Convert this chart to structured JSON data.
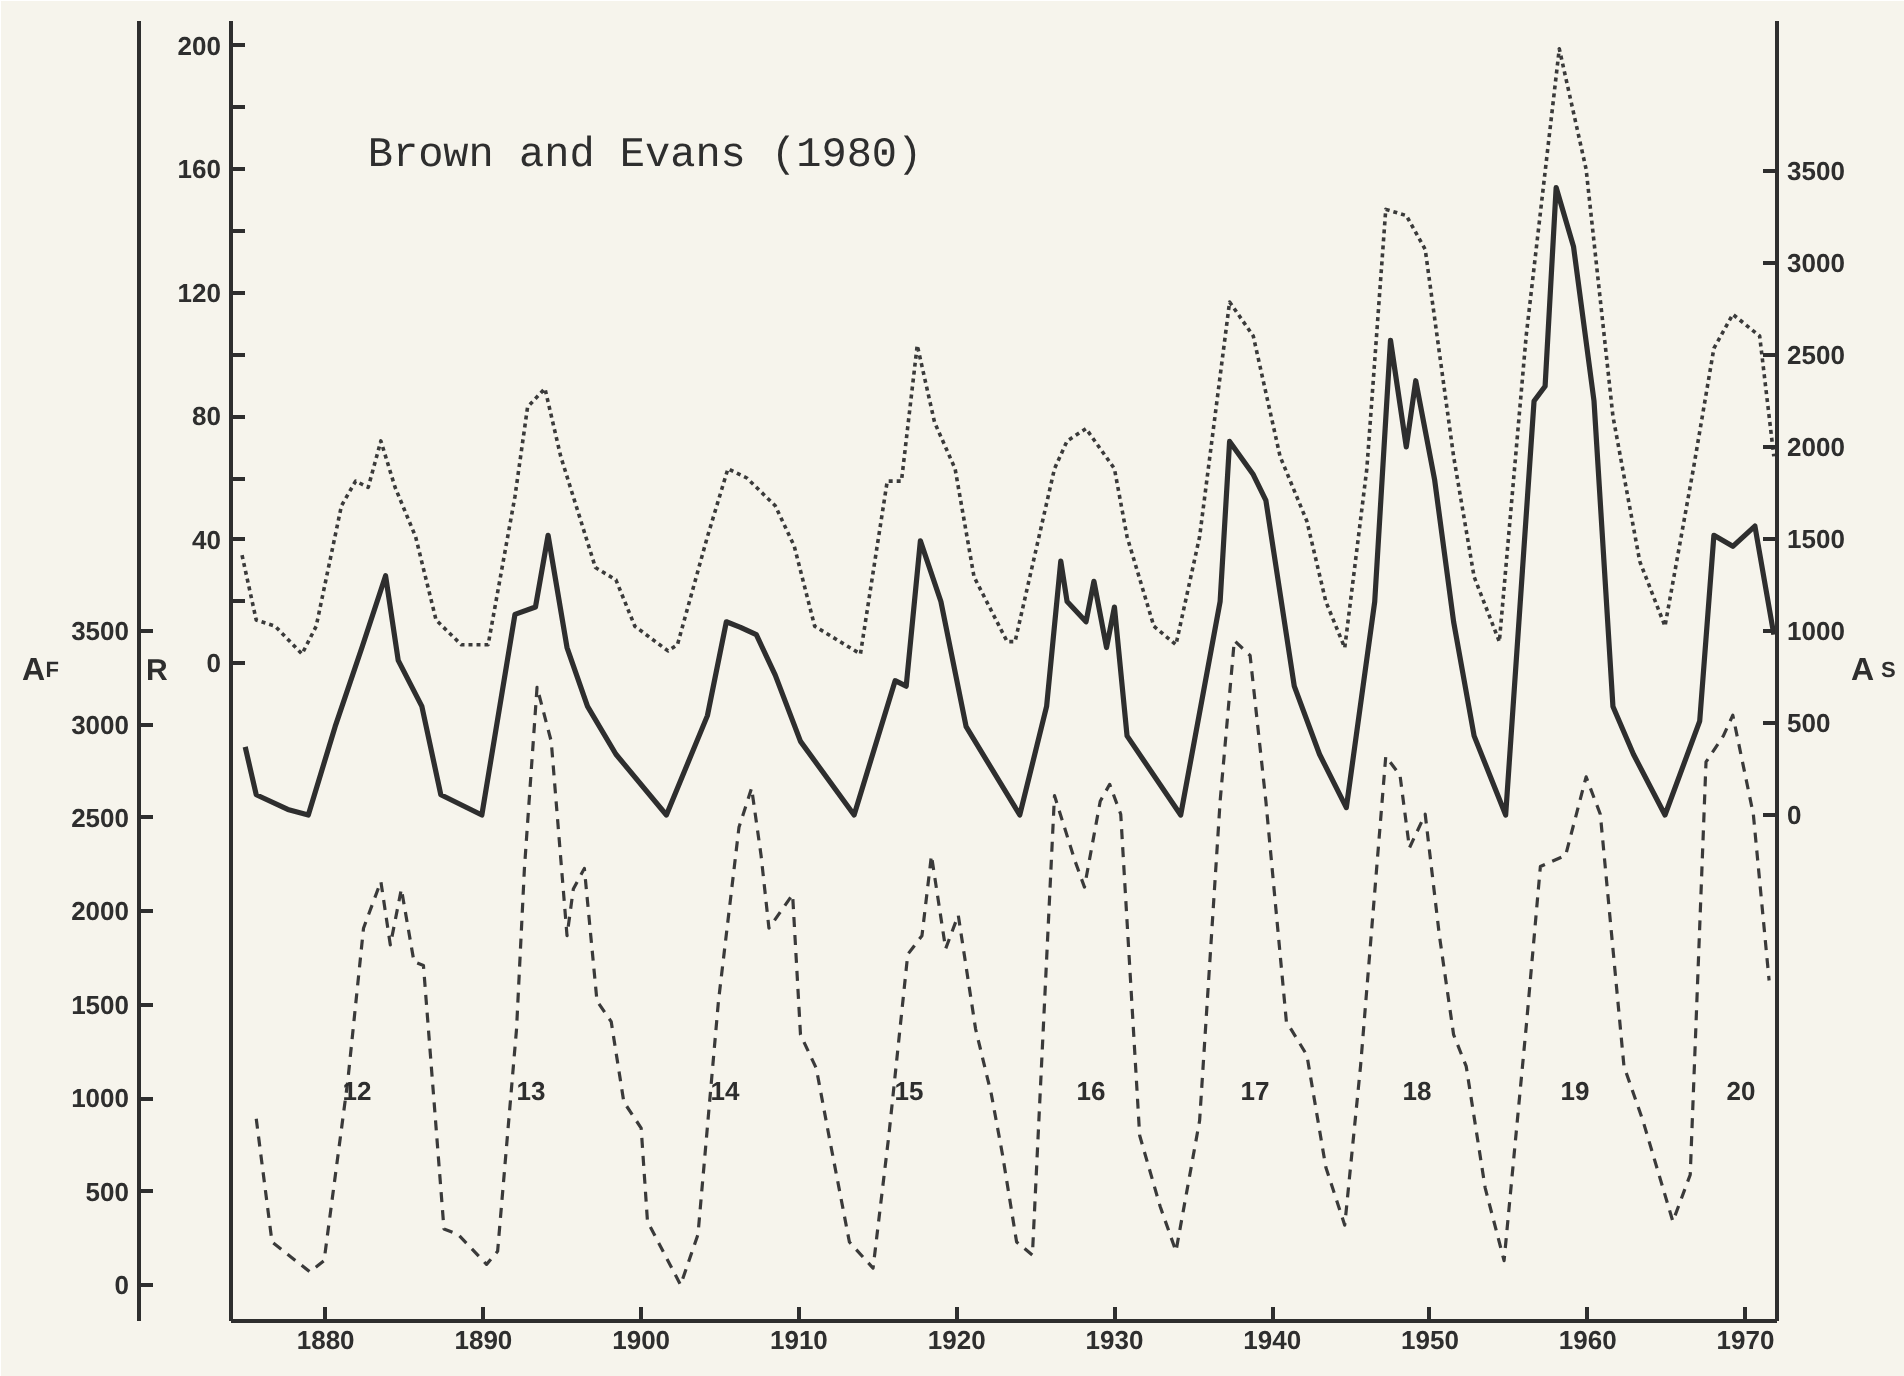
{
  "chart_data": {
    "type": "line",
    "title": "Brown and Evans (1980)",
    "ylabel": "R",
    "y2label": "A$_{S}$",
    "y3label": "A$_{F}$",
    "xlim": [
      1874,
      1972
    ],
    "xticks": [
      1880,
      1890,
      1900,
      1910,
      1920,
      1930,
      1940,
      1950,
      1960,
      1970
    ],
    "ylim": [
      -213,
      208
    ],
    "yticks": [
      0,
      {
        "value": 20,
        "label": null
      },
      40,
      {
        "value": 60,
        "label": null
      },
      80,
      {
        "value": 100,
        "label": null
      },
      120,
      {
        "value": 140,
        "label": null
      },
      160,
      {
        "value": 180,
        "label": null
      },
      200
    ],
    "y2lim": [
      -2750,
      4315
    ],
    "y2ticks": [
      0,
      500,
      1000,
      1500,
      2000,
      2500,
      3000,
      3500
    ],
    "y3lim": [
      -193,
      6767
    ],
    "y3ticks": [
      0,
      500,
      1000,
      1500,
      2000,
      2500,
      3000,
      3500
    ],
    "series": [
      {
        "color": "#3a3a3a",
        "line_style": "dotted",
        "x": [
          1874.7,
          1875.6,
          1876.8,
          1878.5,
          1879.4,
          1881,
          1881.9,
          1882.7,
          1883.5,
          1884.4,
          1885.7,
          1887,
          1888.6,
          1890.3,
          1892,
          1892.8,
          1893.9,
          1894.9,
          1897.1,
          1898.4,
          1899.6,
          1901.7,
          1902.3,
          1904.2,
          1905.5,
          1906.7,
          1908.5,
          1909.7,
          1911,
          1913.9,
          1915.6,
          1916.5,
          1917.5,
          1918.6,
          1919.9,
          1921.1,
          1923.2,
          1923.7,
          1926.2,
          1927,
          1928.2,
          1930,
          1930.8,
          1932.5,
          1933.9,
          1935.4,
          1937.3,
          1938.8,
          1940.5,
          1942.2,
          1943.4,
          1944.6,
          1946,
          1947.2,
          1948.5,
          1949.7,
          1951.5,
          1952.8,
          1954.4,
          1956.1,
          1958.2,
          1959.9,
          1961.6,
          1963.3,
          1964.9,
          1966.7,
          1968,
          1969.2,
          1970.9,
          1971.8
        ],
        "values": [
          35,
          14,
          12,
          3,
          12,
          51,
          59,
          57,
          72,
          57,
          41,
          14,
          6,
          6,
          54,
          83,
          89,
          67,
          31,
          27,
          12,
          4,
          6,
          41,
          63,
          60,
          51,
          38,
          12,
          3,
          59,
          59,
          103,
          78,
          63,
          28,
          7,
          7,
          63,
          72,
          76,
          63,
          41,
          12,
          6,
          41,
          117,
          106,
          67,
          46,
          20,
          5,
          63,
          147,
          145,
          134,
          67,
          28,
          7,
          106,
          199,
          160,
          80,
          33,
          12,
          63,
          102,
          113,
          106,
          67
        ]
      },
      {
        "color": "#2e2e2e",
        "line_style": "solid",
        "axis": "y2",
        "x": [
          1874.9,
          1875.6,
          1877.6,
          1878.9,
          1880.6,
          1882.3,
          1883.8,
          1884.6,
          1886.1,
          1887.3,
          1889.9,
          1892,
          1893.3,
          1894.1,
          1895.3,
          1896.6,
          1898.4,
          1901.6,
          1904.2,
          1905.4,
          1906.3,
          1907.3,
          1908.5,
          1910.1,
          1913.5,
          1916.1,
          1916.8,
          1917.7,
          1919,
          1920.6,
          1924,
          1925.7,
          1926.6,
          1927,
          1928.2,
          1928.7,
          1929.5,
          1930,
          1930.8,
          1934.2,
          1936.7,
          1937.3,
          1938.8,
          1939.6,
          1941.4,
          1943,
          1944.7,
          1946.5,
          1947.5,
          1948.5,
          1949.1,
          1950.3,
          1951.5,
          1952.8,
          1954.8,
          1956.6,
          1957.3,
          1958,
          1959.1,
          1960.4,
          1961.6,
          1962.9,
          1964.9,
          1967.1,
          1968,
          1969.2,
          1970.6,
          1971.8
        ],
        "values": [
          370,
          110,
          30,
          0,
          480,
          910,
          1300,
          840,
          590,
          110,
          0,
          1090,
          1130,
          1520,
          910,
          590,
          330,
          0,
          540,
          1050,
          1020,
          980,
          760,
          400,
          0,
          730,
          700,
          1490,
          1160,
          480,
          0,
          590,
          1380,
          1160,
          1050,
          1270,
          910,
          1130,
          430,
          0,
          1160,
          2030,
          1850,
          1710,
          700,
          330,
          40,
          1160,
          2580,
          2000,
          2360,
          1820,
          1050,
          430,
          0,
          2250,
          2330,
          3410,
          3090,
          2250,
          590,
          330,
          0,
          510,
          1520,
          1460,
          1570,
          980
        ]
      },
      {
        "color": "#3a3a3a",
        "line_style": "dashed",
        "axis": "y3",
        "x": [
          1875.6,
          1876.6,
          1879,
          1879.9,
          1881.4,
          1882.4,
          1883.5,
          1884.1,
          1884.8,
          1885.6,
          1886.2,
          1887.5,
          1888.4,
          1890.2,
          1890.9,
          1892.1,
          1892.6,
          1893.4,
          1894.3,
          1895.3,
          1895.7,
          1896.4,
          1897.2,
          1898.1,
          1898.9,
          1900,
          1900.4,
          1902.5,
          1903.6,
          1904.9,
          1906.2,
          1907,
          1907.6,
          1908.1,
          1909.6,
          1910.1,
          1911.1,
          1911.9,
          1913.2,
          1914.7,
          1915.7,
          1916.9,
          1917.8,
          1918.4,
          1919.3,
          1920.1,
          1921.2,
          1922.2,
          1922.9,
          1923.8,
          1924.8,
          1926.2,
          1927.5,
          1928.1,
          1929.1,
          1929.7,
          1930.4,
          1931.6,
          1932.9,
          1933.9,
          1935.4,
          1936.7,
          1937.6,
          1938.6,
          1939.6,
          1940.9,
          1942.2,
          1943.4,
          1944.6,
          1945.6,
          1947.2,
          1948.1,
          1948.7,
          1949.7,
          1950.6,
          1951.5,
          1952.3,
          1953.5,
          1954.7,
          1956.1,
          1957,
          1958.6,
          1959.9,
          1960.8,
          1962.3,
          1963.5,
          1965.4,
          1966.5,
          1967.5,
          1968.6,
          1969.2,
          1970.5,
          1971.5
        ],
        "values": [
          890,
          230,
          70,
          130,
          1090,
          1910,
          2160,
          1820,
          2120,
          1730,
          1710,
          300,
          270,
          110,
          180,
          1370,
          2230,
          3200,
          2910,
          1870,
          2120,
          2230,
          1520,
          1410,
          980,
          840,
          340,
          0,
          270,
          1520,
          2450,
          2660,
          2300,
          1910,
          2090,
          1340,
          1160,
          800,
          230,
          90,
          800,
          1770,
          1870,
          2300,
          1800,
          1980,
          1370,
          1020,
          700,
          230,
          160,
          2620,
          2270,
          2130,
          2590,
          2680,
          2520,
          800,
          420,
          180,
          880,
          2590,
          3450,
          3370,
          2590,
          1410,
          1230,
          630,
          320,
          1170,
          2830,
          2730,
          2340,
          2520,
          1870,
          1340,
          1170,
          520,
          130,
          1380,
          2240,
          2300,
          2720,
          2520,
          1170,
          880,
          340,
          590,
          2800,
          2940,
          3050,
          2520,
          1630
        ]
      }
    ],
    "annotations": [
      "12",
      "13",
      "14",
      "15",
      "16",
      "17",
      "18",
      "19",
      "20"
    ]
  }
}
